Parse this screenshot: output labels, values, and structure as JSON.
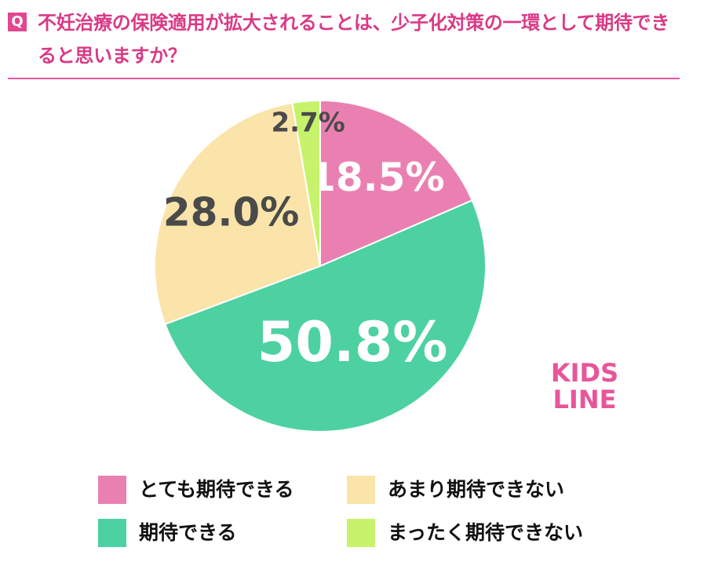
{
  "chart_data": {
    "type": "pie",
    "badge": "Q",
    "title": "不妊治療の保険適用が拡大されることは、少子化対策の一環として期待できると思いますか？",
    "categories": [
      "とても期待できる",
      "期待できる",
      "あまり期待できない",
      "まったく期待できない"
    ],
    "values": [
      18.5,
      50.8,
      28.0,
      2.7
    ],
    "value_labels": [
      "18.5%",
      "50.8%",
      "28.0%",
      "2.7%"
    ],
    "colors": [
      "#ea80b1",
      "#4dd1a1",
      "#fae4aa",
      "#c6f36b"
    ],
    "logo": [
      "KIDS",
      "LINE"
    ]
  }
}
